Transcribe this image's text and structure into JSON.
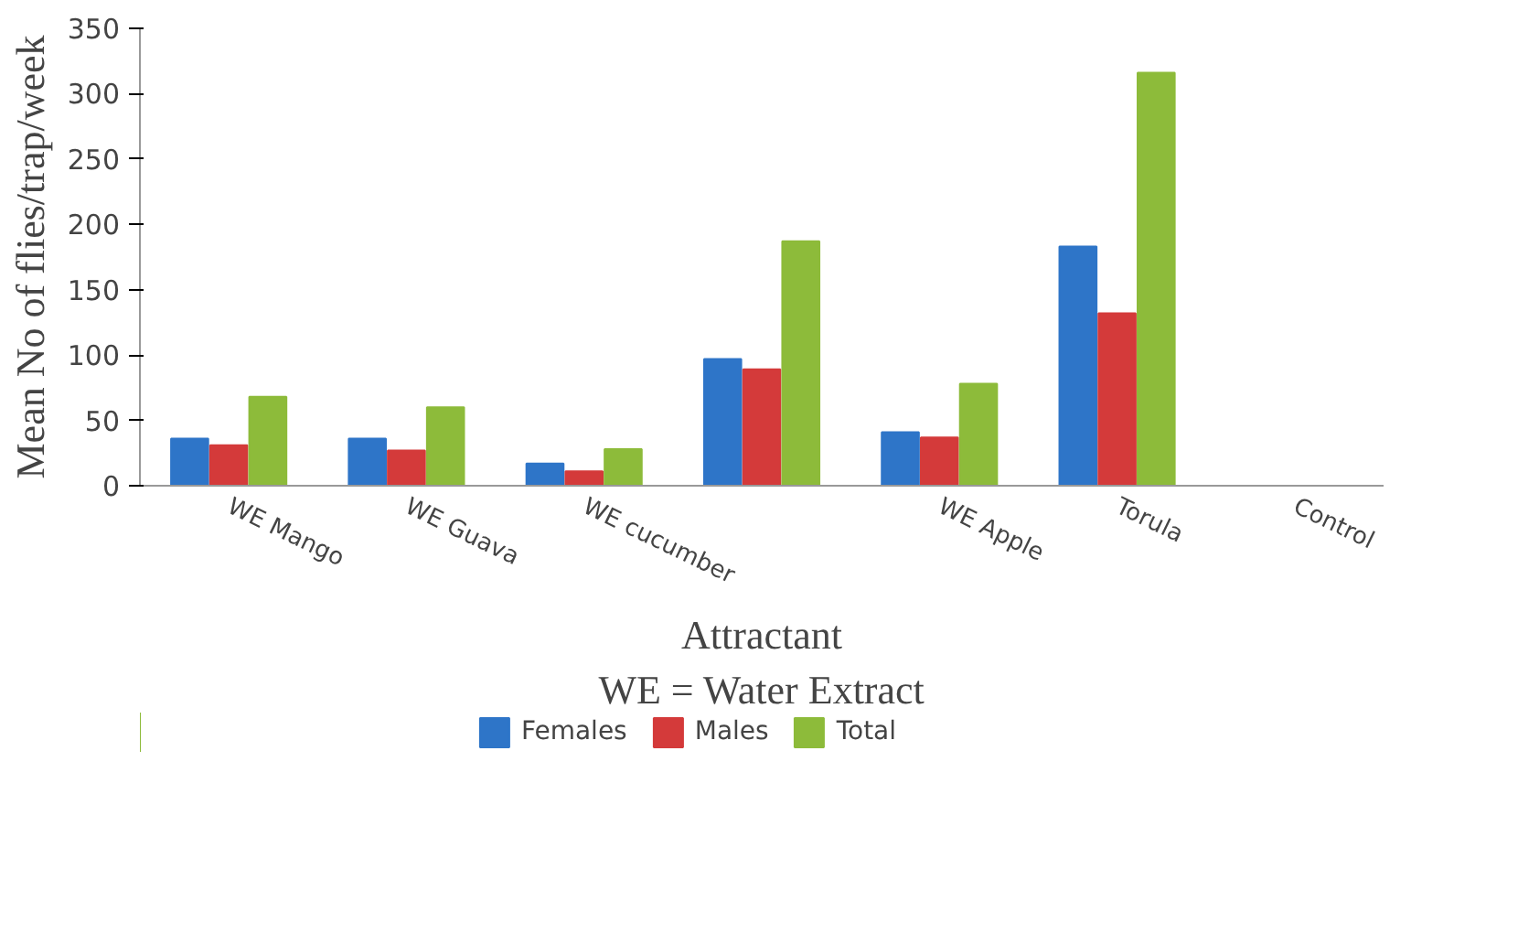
{
  "chart_data": {
    "type": "bar",
    "xlabel": "Attractant",
    "ylabel": "Mean No of flies/trap/week",
    "annotations": [
      "WE = Water Extract"
    ],
    "categories": [
      "WE Mango",
      "WE Guava",
      "WE cucumber",
      null,
      "WE Apple",
      "Torula",
      "Control"
    ],
    "series": [
      {
        "name": "Females",
        "color": "#2e75c8",
        "values": [
          36,
          36,
          17,
          97,
          41,
          183,
          0
        ]
      },
      {
        "name": "Males",
        "color": "#d43a3a",
        "values": [
          31,
          27,
          11,
          89,
          37,
          132,
          0
        ]
      },
      {
        "name": "Total",
        "color": "#8dbb3a",
        "values": [
          68,
          60,
          28,
          187,
          78,
          316,
          0
        ]
      }
    ],
    "ylim": [
      0,
      350
    ],
    "yticks": [
      0,
      50,
      100,
      150,
      200,
      250,
      300,
      350
    ],
    "grid": false,
    "legend": "bottom"
  }
}
